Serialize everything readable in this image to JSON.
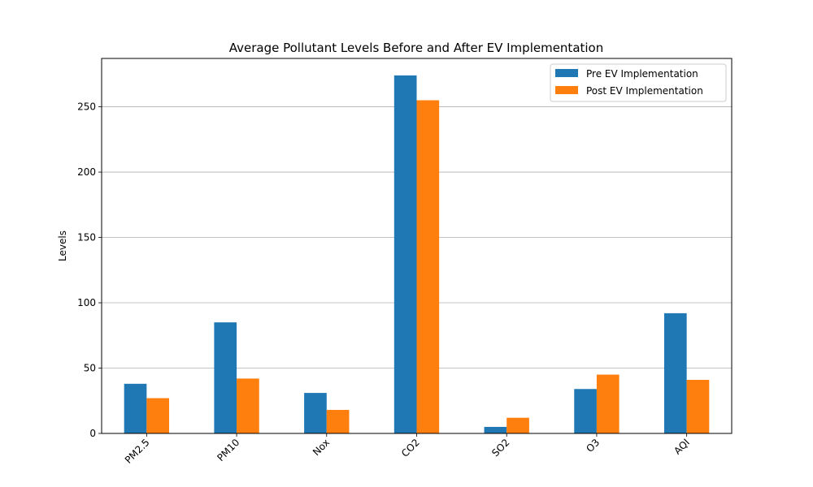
{
  "chart_data": {
    "type": "bar",
    "title": "Average Pollutant Levels Before and After EV Implementation",
    "xlabel": "",
    "ylabel": "Levels",
    "categories": [
      "PM2.5",
      "PM10",
      "Nox",
      "CO2",
      "SO2",
      "O3",
      "AQI"
    ],
    "series": [
      {
        "name": "Pre EV Implementation",
        "color": "#1f77b4",
        "values": [
          38,
          85,
          31,
          274,
          5,
          34,
          92
        ]
      },
      {
        "name": "Post EV Implementation",
        "color": "#ff7f0e",
        "values": [
          27,
          42,
          18,
          255,
          12,
          45,
          41
        ]
      }
    ],
    "ylim": [
      0,
      287
    ],
    "yticks": [
      0,
      50,
      100,
      150,
      200,
      250
    ],
    "grid": "y",
    "legend_position": "top-right",
    "xtick_rotation": 45
  }
}
